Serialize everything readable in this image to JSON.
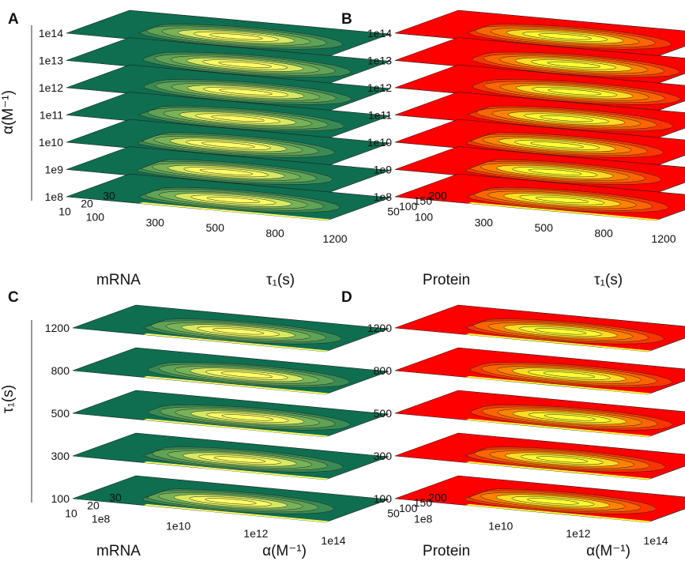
{
  "chart_data": [
    {
      "id": "A",
      "type": "heatmap",
      "panel_label": "A",
      "colormap": {
        "low": "#0f6e50",
        "mid": "#8cbf5a",
        "high": "#ffff66"
      },
      "layer_axis": {
        "label": "α(M⁻¹)",
        "ticks": [
          "1e14",
          "1e13",
          "1e12",
          "1e11",
          "1e10",
          "1e9",
          "1e8"
        ]
      },
      "depth_axis": {
        "label": "mRNA",
        "ticks": [
          "30",
          "20",
          "10"
        ]
      },
      "x_axis": {
        "label": "τ₁(s)",
        "ticks": [
          "100",
          "300",
          "500",
          "800",
          "1200"
        ]
      }
    },
    {
      "id": "B",
      "type": "heatmap",
      "panel_label": "B",
      "colormap": {
        "low": "#ff0000",
        "mid": "#ff9900",
        "high": "#ffff33"
      },
      "layer_axis": {
        "label": "",
        "ticks": [
          "1e14",
          "1e13",
          "1e12",
          "1e11",
          "1e10",
          "1e9",
          "1e8"
        ]
      },
      "depth_axis": {
        "label": "Protein",
        "ticks": [
          "200",
          "150",
          "100",
          "50"
        ]
      },
      "x_axis": {
        "label": "τ₁(s)",
        "ticks": [
          "100",
          "300",
          "500",
          "800",
          "1200"
        ]
      }
    },
    {
      "id": "C",
      "type": "heatmap",
      "panel_label": "C",
      "colormap": {
        "low": "#0f6e50",
        "mid": "#8cbf5a",
        "high": "#ffff66"
      },
      "layer_axis": {
        "label": "τ₁(s)",
        "ticks": [
          "1200",
          "800",
          "500",
          "300",
          "100"
        ]
      },
      "depth_axis": {
        "label": "mRNA",
        "ticks": [
          "30",
          "20",
          "10"
        ]
      },
      "x_axis": {
        "label": "α(M⁻¹)",
        "ticks": [
          "1e8",
          "1e10",
          "1e12",
          "1e14"
        ]
      }
    },
    {
      "id": "D",
      "type": "heatmap",
      "panel_label": "D",
      "colormap": {
        "low": "#ff0000",
        "mid": "#ff9900",
        "high": "#ffff33"
      },
      "layer_axis": {
        "label": "",
        "ticks": [
          "1200",
          "800",
          "500",
          "300",
          "100"
        ]
      },
      "depth_axis": {
        "label": "Protein",
        "ticks": [
          "200",
          "150",
          "100",
          "50"
        ]
      },
      "x_axis": {
        "label": "α(M⁻¹)",
        "ticks": [
          "1e8",
          "1e10",
          "1e12",
          "1e14"
        ]
      }
    }
  ]
}
